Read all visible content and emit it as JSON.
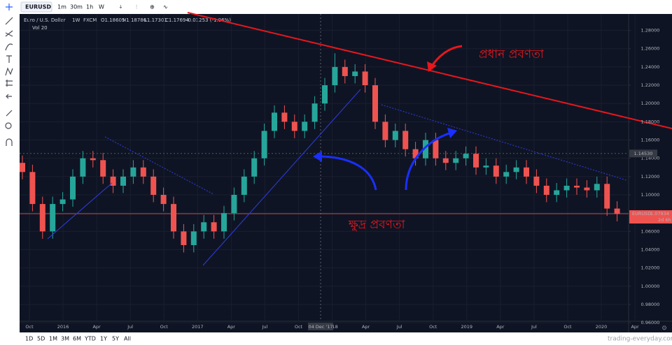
{
  "toolbar": {
    "symbol": "EURUSD",
    "intervals": [
      "1m",
      "30m",
      "1h",
      "W"
    ]
  },
  "legend": {
    "name": "Euro / U.S. Dollar",
    "interval": "1W",
    "source": "FXCM",
    "open": "O1.18605",
    "high": "H1.18786",
    "low": "L1.17301",
    "close": "C1.17694",
    "change": "-0.01253 (-1.06%)",
    "volume": "Vol 20"
  },
  "annotations": {
    "main_trend": "প্রধান প্রবণতা",
    "minor_trend": "ক্ষুদ্র প্রবণতা"
  },
  "bottom_bar": {
    "ranges": [
      "1D",
      "5D",
      "1M",
      "3M",
      "6M",
      "YTD",
      "1Y",
      "5Y",
      "All"
    ],
    "watermark": "trading-everyday.com"
  },
  "chart_data": {
    "type": "candlestick",
    "up_color": "#26a69a",
    "down_color": "#ef5350",
    "ylim": [
      0.954,
      1.298
    ],
    "yticks": [
      {
        "value": 1.28,
        "label": "1.28000"
      },
      {
        "value": 1.26,
        "label": "1.26000"
      },
      {
        "value": 1.24,
        "label": "1.24000"
      },
      {
        "value": 1.22,
        "label": "1.22000"
      },
      {
        "value": 1.2,
        "label": "1.20000"
      },
      {
        "value": 1.18,
        "label": "1.18000"
      },
      {
        "value": 1.16,
        "label": "1.16000"
      },
      {
        "value": 1.14,
        "label": "1.14000"
      },
      {
        "value": 1.12,
        "label": "1.12000"
      },
      {
        "value": 1.1,
        "label": "1.10000"
      },
      {
        "value": 1.08,
        "label": "1.08000"
      },
      {
        "value": 1.06,
        "label": "1.06000"
      },
      {
        "value": 1.04,
        "label": "1.04000"
      },
      {
        "value": 1.02,
        "label": "1.02000"
      },
      {
        "value": 1.0,
        "label": "1.00000"
      },
      {
        "value": 0.98,
        "label": "0.98000"
      },
      {
        "value": 0.96,
        "label": "0.96000"
      }
    ],
    "grid": true,
    "time_labels": [
      "Oct",
      "2016",
      "Apr",
      "Jul",
      "Oct",
      "2017",
      "Apr",
      "Jul",
      "Oct",
      "2018",
      "Apr",
      "Jul",
      "Oct",
      "2019",
      "Apr",
      "Jul",
      "Oct",
      "2020",
      "Apr"
    ],
    "crosshair_time": "04 Dec '17",
    "crosshair_price": {
      "value": 1.1453,
      "label": "1.14530"
    },
    "last_symbol": "EURUSD",
    "last_price": 1.07934,
    "countdown": "2d 6h",
    "open": [
      1.135,
      1.125,
      1.09,
      1.06,
      1.09,
      1.095,
      1.12,
      1.14,
      1.138,
      1.12,
      1.11,
      1.12,
      1.13,
      1.12,
      1.1,
      1.09,
      1.06,
      1.045,
      1.06,
      1.07,
      1.06,
      1.08,
      1.1,
      1.12,
      1.14,
      1.17,
      1.19,
      1.18,
      1.17,
      1.18,
      1.2,
      1.22,
      1.24,
      1.23,
      1.235,
      1.22,
      1.18,
      1.16,
      1.17,
      1.15,
      1.14,
      1.16,
      1.14,
      1.135,
      1.14,
      1.145,
      1.13,
      1.132,
      1.12,
      1.125,
      1.13,
      1.12,
      1.11,
      1.1,
      1.105,
      1.11,
      1.108,
      1.105,
      1.112,
      1.085
    ],
    "high": [
      1.143,
      1.133,
      1.098,
      1.098,
      1.103,
      1.128,
      1.148,
      1.148,
      1.146,
      1.128,
      1.128,
      1.138,
      1.138,
      1.128,
      1.108,
      1.098,
      1.068,
      1.068,
      1.078,
      1.078,
      1.088,
      1.108,
      1.128,
      1.148,
      1.178,
      1.198,
      1.198,
      1.188,
      1.188,
      1.208,
      1.228,
      1.255,
      1.248,
      1.243,
      1.243,
      1.228,
      1.188,
      1.178,
      1.178,
      1.158,
      1.168,
      1.168,
      1.148,
      1.148,
      1.153,
      1.153,
      1.14,
      1.14,
      1.133,
      1.138,
      1.138,
      1.128,
      1.118,
      1.113,
      1.118,
      1.118,
      1.116,
      1.12,
      1.12,
      1.093
    ],
    "low": [
      1.117,
      1.082,
      1.052,
      1.052,
      1.082,
      1.087,
      1.112,
      1.13,
      1.112,
      1.102,
      1.102,
      1.112,
      1.112,
      1.092,
      1.082,
      1.052,
      1.037,
      1.037,
      1.052,
      1.052,
      1.052,
      1.072,
      1.092,
      1.112,
      1.132,
      1.162,
      1.172,
      1.162,
      1.162,
      1.172,
      1.192,
      1.212,
      1.222,
      1.222,
      1.212,
      1.172,
      1.152,
      1.152,
      1.142,
      1.132,
      1.132,
      1.132,
      1.127,
      1.127,
      1.132,
      1.122,
      1.122,
      1.112,
      1.112,
      1.117,
      1.112,
      1.102,
      1.092,
      1.092,
      1.097,
      1.1,
      1.097,
      1.097,
      1.077,
      1.071
    ],
    "close": [
      1.125,
      1.09,
      1.06,
      1.09,
      1.095,
      1.12,
      1.14,
      1.138,
      1.12,
      1.11,
      1.12,
      1.13,
      1.12,
      1.1,
      1.09,
      1.06,
      1.045,
      1.06,
      1.07,
      1.06,
      1.08,
      1.1,
      1.12,
      1.14,
      1.17,
      1.19,
      1.18,
      1.17,
      1.18,
      1.2,
      1.22,
      1.24,
      1.23,
      1.235,
      1.22,
      1.18,
      1.16,
      1.17,
      1.15,
      1.14,
      1.16,
      1.14,
      1.135,
      1.14,
      1.145,
      1.13,
      1.132,
      1.12,
      1.125,
      1.13,
      1.12,
      1.11,
      1.1,
      1.105,
      1.11,
      1.108,
      1.105,
      1.112,
      1.085,
      1.079
    ]
  }
}
